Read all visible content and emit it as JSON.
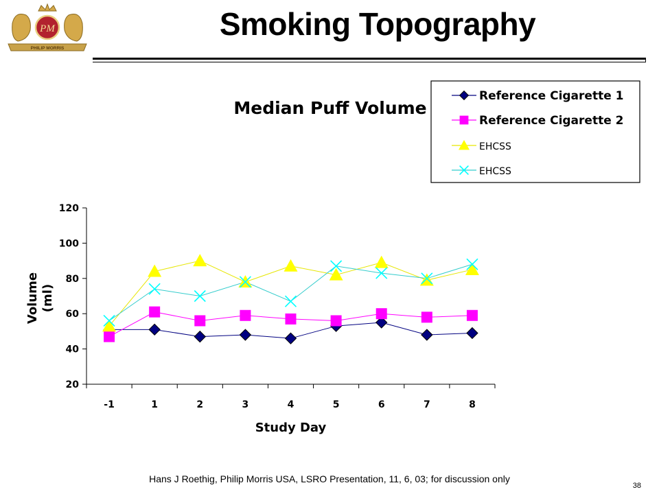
{
  "slide": {
    "title": "Smoking Topography",
    "footer": "Hans J Roethig, Philip Morris USA, LSRO Presentation, 11, 6, 03; for discussion only",
    "page_number": "38",
    "logo": {
      "text": "PHILIP MORRIS",
      "monogram": "PM"
    }
  },
  "chart_data": {
    "type": "line",
    "title": "Median Puff Volume",
    "xlabel": "Study Day",
    "ylabel": [
      "Volume",
      "(ml)"
    ],
    "categories": [
      "-1",
      "1",
      "2",
      "3",
      "4",
      "5",
      "6",
      "7",
      "8"
    ],
    "ylim": [
      20,
      120
    ],
    "yticks": [
      20,
      40,
      60,
      80,
      100,
      120
    ],
    "grid": false,
    "legend_position": "top-right",
    "series": [
      {
        "name": "Reference Cigarette 1",
        "marker": "diamond",
        "color": "#000080",
        "line_color": "#000080",
        "values": [
          51,
          51,
          47,
          48,
          46,
          53,
          55,
          48,
          49
        ]
      },
      {
        "name": "Reference Cigarette 2",
        "marker": "square",
        "color": "#FF00FF",
        "line_color": "#FF00FF",
        "values": [
          47,
          61,
          56,
          59,
          57,
          56,
          60,
          58,
          59
        ]
      },
      {
        "name": "EHCSS",
        "marker": "triangle",
        "color": "#FFFF00",
        "line_color": "#E6E600",
        "values": [
          53,
          84,
          90,
          78,
          87,
          82,
          89,
          79,
          85
        ]
      },
      {
        "name": "EHCSS",
        "marker": "x",
        "color": "#00FFFF",
        "line_color": "#33CCCC",
        "values": [
          56,
          74,
          70,
          78,
          67,
          87,
          83,
          80,
          88
        ]
      }
    ]
  }
}
